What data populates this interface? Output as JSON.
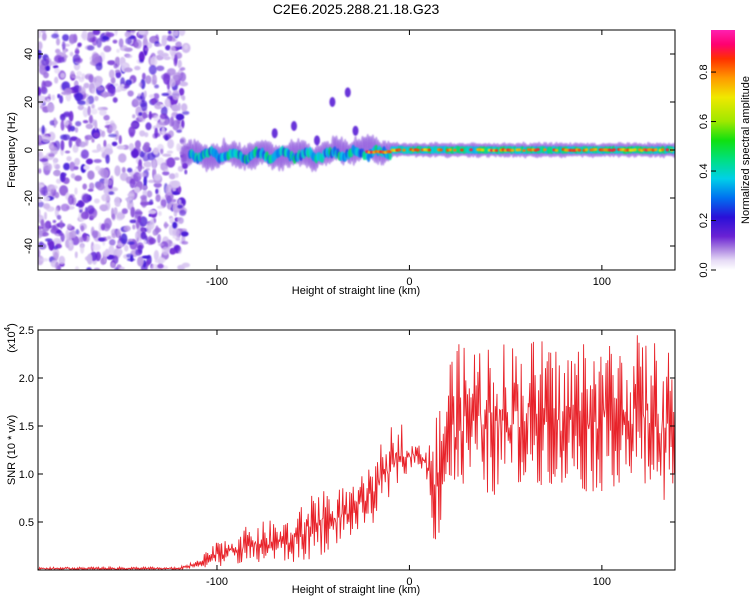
{
  "figure": {
    "title": "C2E6.2025.288.21.18.G23"
  },
  "chart_data": [
    {
      "id": "spectrogram",
      "type": "heatmap",
      "xlabel": "Height of straight line (km)",
      "ylabel": "Frequency (Hz)",
      "xlim": [
        -193,
        138
      ],
      "ylim": [
        -50,
        50
      ],
      "xticks": [
        -100,
        0,
        100
      ],
      "yticks": [
        -40,
        -20,
        0,
        20,
        40
      ],
      "noise_region_x": [
        -193,
        -116
      ],
      "signal_band": {
        "x_start": -118,
        "x_end": 138,
        "center_freq": 0,
        "peak_segments_x": [
          [
            -22,
            138
          ]
        ],
        "side_blobs": [
          {
            "x": -32,
            "y": 24
          },
          {
            "x": -40,
            "y": 20
          },
          {
            "x": -28,
            "y": 8
          },
          {
            "x": -60,
            "y": 10
          },
          {
            "x": -70,
            "y": 7
          },
          {
            "x": -48,
            "y": 4
          }
        ]
      },
      "colorbar": {
        "label": "Normalized spectral amplitude",
        "ticks": [
          "0.0",
          "0.2",
          "0.4",
          "0.6",
          "0.8"
        ],
        "range": [
          0,
          0.97
        ]
      }
    },
    {
      "id": "snr",
      "type": "line",
      "xlabel": "Height of straight line (km)",
      "ylabel": "SNR (10 * v/v)",
      "multiplier": "(x10",
      "multiplier_exp": "4",
      "multiplier_close": ")",
      "xlim": [
        -193,
        138
      ],
      "ylim": [
        0,
        2.5
      ],
      "xticks": [
        -100,
        0,
        100
      ],
      "yticks": [
        "0.5",
        "1.0",
        "1.5",
        "2.0",
        "2.5"
      ],
      "color": "#e8232a",
      "envelope": {
        "x": [
          -193,
          -120,
          -110,
          -100,
          -80,
          -60,
          -50,
          -45,
          -40,
          -35,
          -30,
          -20,
          -15,
          -10,
          -5,
          0,
          5,
          10,
          13,
          15,
          18,
          20,
          30,
          40,
          50,
          60,
          70,
          80,
          90,
          100,
          110,
          120,
          130,
          138
        ],
        "low": [
          0.0,
          0.0,
          0.02,
          0.04,
          0.05,
          0.07,
          0.1,
          0.15,
          0.25,
          0.3,
          0.35,
          0.45,
          0.6,
          0.7,
          0.9,
          1.05,
          1.1,
          0.8,
          0.2,
          0.3,
          0.6,
          0.7,
          0.8,
          0.7,
          0.85,
          0.8,
          0.9,
          0.8,
          0.8,
          0.8,
          0.9,
          0.8,
          0.7,
          0.8
        ],
        "high": [
          0.03,
          0.03,
          0.1,
          0.3,
          0.5,
          0.55,
          0.85,
          0.95,
          0.75,
          0.9,
          0.85,
          1.1,
          1.3,
          1.5,
          1.6,
          1.35,
          1.3,
          1.4,
          1.6,
          1.7,
          2.0,
          2.3,
          2.4,
          2.45,
          2.4,
          2.45,
          2.4,
          2.3,
          2.45,
          2.4,
          2.5,
          2.45,
          2.4,
          2.2
        ]
      }
    }
  ]
}
